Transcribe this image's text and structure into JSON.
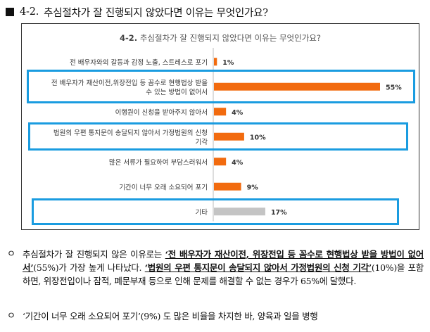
{
  "heading": {
    "number": "4-2.",
    "text": "추심절차가 잘 진행되지 않았다면 이유는 무엇인가요?"
  },
  "chart_data": {
    "type": "bar",
    "orientation": "horizontal",
    "title_prefix": "4-2.",
    "title": "추심절차가 잘 진행되지 않았다면 이유는 무엇인가요?",
    "categories": [
      [
        "전 배우자와의 갈등과 감정 노출, 스트레스로 포기"
      ],
      [
        "전 배우자가 재산이전,위장전입 등 꼼수로 현행법상 받을",
        "수 있는 방법이 없어서"
      ],
      [
        "이행원이 신청을 받아주지 않아서"
      ],
      [
        "법원의 우편 통지문이 송달되지 않아서  가정법원의 신청",
        "기각"
      ],
      [
        "많은 서류가 필요하여 부담스러워서"
      ],
      [
        "기간이 너무 오래 소요되어 포기"
      ],
      [
        "기타"
      ]
    ],
    "values": [
      1,
      55,
      4,
      10,
      4,
      9,
      17
    ],
    "value_labels": [
      "1%",
      "55%",
      "4%",
      "10%",
      "4%",
      "9%",
      "17%"
    ],
    "bar_colors": [
      "#f26b0f",
      "#f26b0f",
      "#f26b0f",
      "#f26b0f",
      "#f26b0f",
      "#f26b0f",
      "#c4c4c4"
    ],
    "highlighted_categories": [
      1,
      3,
      6
    ],
    "highlight_color": "#1a9ce0",
    "xlim": [
      0,
      55
    ],
    "grid": false,
    "legend": "none"
  },
  "paragraph1": {
    "bullet": "ㅇ",
    "t1": "추심절차가 잘 진행되지 않은 이유로는 ",
    "e1": "‘전 배우자가 재산이전, 위장전입 등 꼼수로 현행법상 받을 방법이 없어서’",
    "t2": "(55%)가 가장 높게 나타났다. ",
    "e2": "‘법원의 우편 통지문이 송달되지 않아서 가정법원의 신청 기각’",
    "t3": "(10%)을 포함하면, 위장전입이나 잠적, 폐문부재 등으로 인해 문제를 해결할 수 없는 경우가 65%에 달했다."
  },
  "paragraph2": {
    "bullet": "ㅇ",
    "text": "‘기간이 너무 오래 소요되어 포기’(9%) 도 많은 비율을 차지한 바, 양육과 일을 병행"
  }
}
